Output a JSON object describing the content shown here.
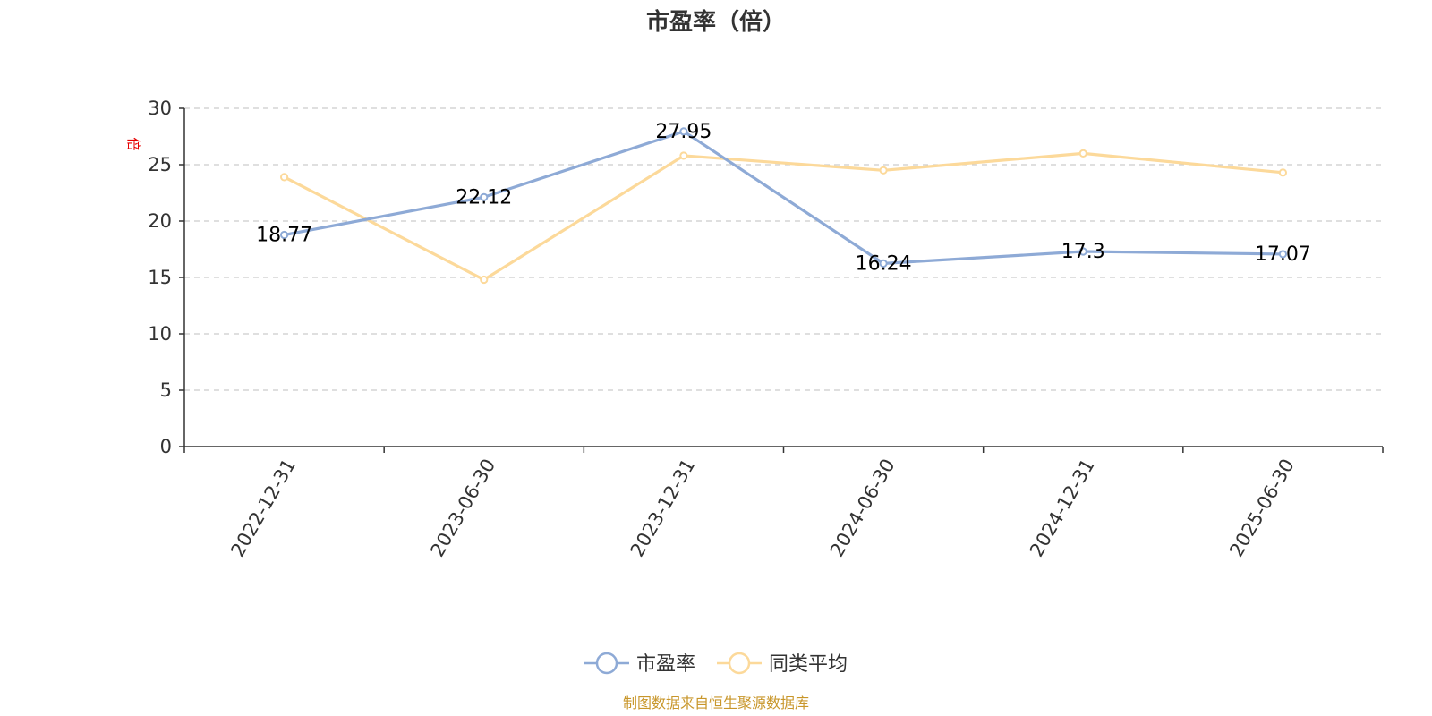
{
  "chart_data": {
    "type": "line",
    "title": "市盈率（倍）",
    "y_unit": "倍",
    "categories": [
      "2022-12-31",
      "2023-06-30",
      "2023-12-31",
      "2024-06-30",
      "2024-12-31",
      "2025-06-30"
    ],
    "ylim": [
      0,
      30
    ],
    "yticks": [
      0,
      5,
      10,
      15,
      20,
      25,
      30
    ],
    "grid": true,
    "legend_position": "bottom-center",
    "series": [
      {
        "name": "市盈率",
        "color": "#8eaad6",
        "values": [
          18.77,
          22.12,
          27.95,
          16.24,
          17.3,
          17.07
        ],
        "labels": [
          "18.77",
          "22.12",
          "27.95",
          "16.24",
          "17.3",
          "17.07"
        ]
      },
      {
        "name": "同类平均",
        "color": "#fcd99a",
        "values": [
          23.9,
          14.8,
          25.8,
          24.5,
          26.0,
          24.3
        ]
      }
    ],
    "source": "制图数据来自恒生聚源数据库"
  }
}
